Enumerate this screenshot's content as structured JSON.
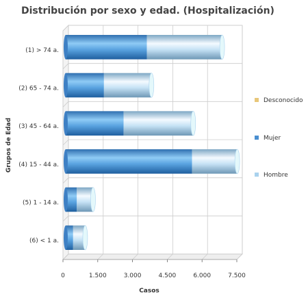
{
  "chart_data": {
    "type": "bar",
    "orientation": "horizontal",
    "stacked": true,
    "title": "Distribución por sexo y edad. (Hospitalización)",
    "xlabel": "Casos",
    "ylabel": "Grupos de Edad",
    "xlim": [
      0,
      7500
    ],
    "xticks": [
      "0",
      "1.500",
      "3.000",
      "4.500",
      "6.000",
      "7.500"
    ],
    "xtick_values": [
      0,
      1500,
      3000,
      4500,
      6000,
      7500
    ],
    "grid": true,
    "legend_position": "right",
    "categories": [
      "(1) > 74 a.",
      "(2) 65 - 74 a.",
      "(3) 45 - 64 a.",
      "(4) 15 - 44 a.",
      "(5) 1 - 14 a.",
      "(6) < 1 a."
    ],
    "series": [
      {
        "name": "Desconocido",
        "color": "#E8C77A",
        "values": [
          0,
          0,
          0,
          0,
          0,
          0
        ]
      },
      {
        "name": "Mujer",
        "color": "#4A8FD0",
        "values": [
          3500,
          1650,
          2500,
          5450,
          480,
          320
        ]
      },
      {
        "name": "Hombre",
        "color": "#A9D2EE",
        "values": [
          3250,
          2050,
          3000,
          1950,
          700,
          520
        ]
      }
    ]
  }
}
